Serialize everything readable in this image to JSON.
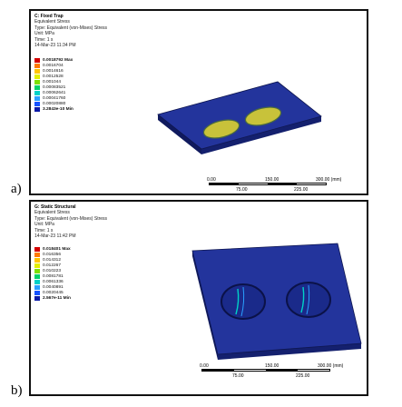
{
  "panel_a": {
    "label": "a)",
    "info": {
      "title": "C: Fixed Trap",
      "lines": [
        "Equivalent Stress",
        "Type: Equivalent (von-Mises) Stress",
        "Unit: MPa",
        "Time: 1 s",
        "14-Mar-23 11:34 PM"
      ]
    },
    "legend": [
      "0.0018792 Max",
      "0.0016704",
      "0.0014616",
      "0.0012528",
      "0.001044",
      "0.00083521",
      "0.00062641",
      "0.00041760",
      "0.00020880",
      "3.2843e-10 Min"
    ],
    "scale": {
      "ticks_top": [
        "0.00",
        "150.00",
        "300.00 (mm)"
      ],
      "ticks_bottom": [
        "75.00",
        "225.00"
      ]
    }
  },
  "panel_b": {
    "label": "b)",
    "info": {
      "title": "G: Static Structural",
      "lines": [
        "Equivalent Stress",
        "Type: Equivalent (von-Mises) Stress",
        "Unit: MPa",
        "Time: 1 s",
        "14-Mar-23 11:42 PM"
      ]
    },
    "legend": [
      "0.018401 Max",
      "0.016356",
      "0.014312",
      "0.012267",
      "0.010223",
      "0.0081781",
      "0.0061336",
      "0.0040891",
      "0.0020445",
      "2.567e-11 Min"
    ],
    "scale": {
      "ticks_top": [
        "0.00",
        "150.00",
        "300.00 (mm)"
      ],
      "ticks_bottom": [
        "75.00",
        "225.00"
      ]
    }
  },
  "colors": {
    "legend_scale": [
      "#d40000",
      "#ff7a00",
      "#ffc400",
      "#e2ef00",
      "#7ce000",
      "#00d26a",
      "#00d2c8",
      "#2aa0ff",
      "#1452ff",
      "#0a1aa8"
    ],
    "plate": "#1a2a8a",
    "plate_top": "#23349c",
    "hot_zone": "#c8c23a"
  }
}
